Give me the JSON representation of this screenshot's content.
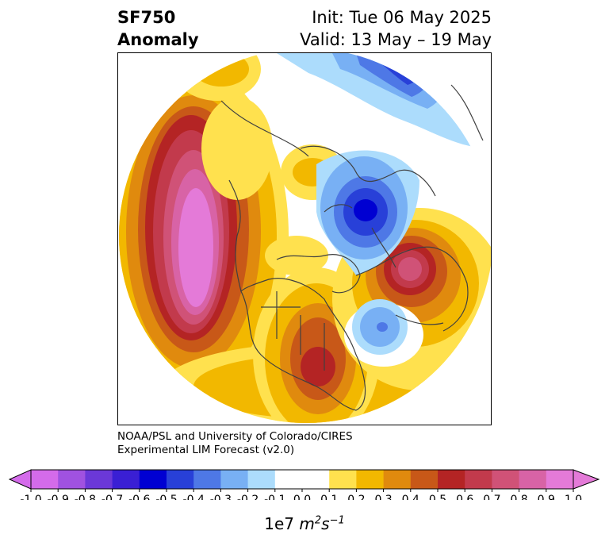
{
  "title": {
    "variable": "SF750",
    "type": "Anomaly",
    "init": "Init: Tue 06 May 2025",
    "valid": "Valid: 13 May – 19 May"
  },
  "credit": {
    "line1": "NOAA/PSL and University of Colorado/CIRES",
    "line2": "Experimental LIM Forecast (v2.0)"
  },
  "colorbar": {
    "ticks": [
      "-1.0",
      "-0.9",
      "-0.8",
      "-0.7",
      "-0.6",
      "-0.5",
      "-0.4",
      "-0.3",
      "-0.2",
      "-0.1",
      "0.0",
      "0.1",
      "0.2",
      "0.3",
      "0.4",
      "0.5",
      "0.6",
      "0.7",
      "0.8",
      "0.9",
      "1.0"
    ],
    "colors": [
      "#d46bea",
      "#a052e0",
      "#6b38d8",
      "#3a1fd4",
      "#0000d2",
      "#2840d8",
      "#4e78e6",
      "#78b0f4",
      "#acdcfc",
      "#ffffff",
      "#ffffff",
      "#ffe14e",
      "#f2b800",
      "#e08a0e",
      "#c85818",
      "#b42424",
      "#c23a4c",
      "#d05277",
      "#d863a6",
      "#e47ad8"
    ],
    "under_color": "#d46bea",
    "over_color": "#e47ad8",
    "units_prefix": "1e7",
    "units_m": "m",
    "units_m_exp": "2",
    "units_s": "s",
    "units_s_exp": "−1"
  },
  "map": {
    "projection": "north polar stereographic",
    "land_outline_color": "#404040",
    "features": [
      {
        "name": "positive anomaly over eastern North Pacific",
        "peak": 1.0
      },
      {
        "name": "positive anomaly over southern Europe / Mediterranean",
        "peak": 0.9
      },
      {
        "name": "positive anomaly over eastern North America",
        "peak": 0.6
      },
      {
        "name": "negative anomaly over Scandinavia",
        "peak": -0.6
      },
      {
        "name": "negative anomaly over central North Atlantic",
        "peak": -0.4
      },
      {
        "name": "negative anomaly over Siberia / Arctic Ocean",
        "peak": -0.5
      }
    ]
  }
}
